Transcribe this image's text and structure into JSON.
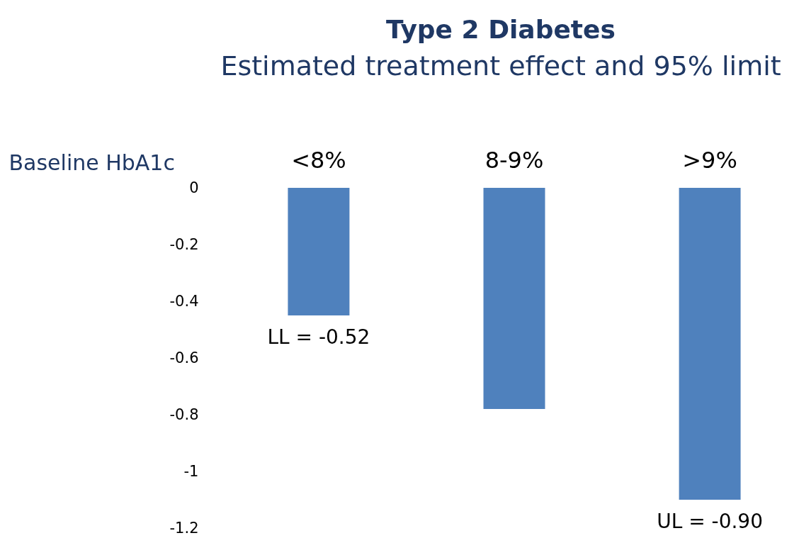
{
  "chart_data": {
    "type": "bar",
    "title": "Type 2 Diabetes",
    "subtitle": "Estimated treatment effect and 95% limit",
    "xlabel": "Baseline HbA1c",
    "categories": [
      "<8%",
      "8-9%",
      ">9%"
    ],
    "values": [
      -0.45,
      -0.78,
      -1.1
    ],
    "color": "#4f81bd",
    "ylim": [
      -1.2,
      0
    ],
    "yticks": [
      0,
      -0.2,
      -0.4,
      -0.6,
      -0.8,
      -1,
      -1.2
    ],
    "grid": false,
    "annotations": [
      {
        "text": "LL = -0.52",
        "x": "<8%",
        "y": -0.45
      },
      {
        "text": "UL = -0.90",
        "x": ">9%",
        "y": -1.1
      }
    ]
  }
}
